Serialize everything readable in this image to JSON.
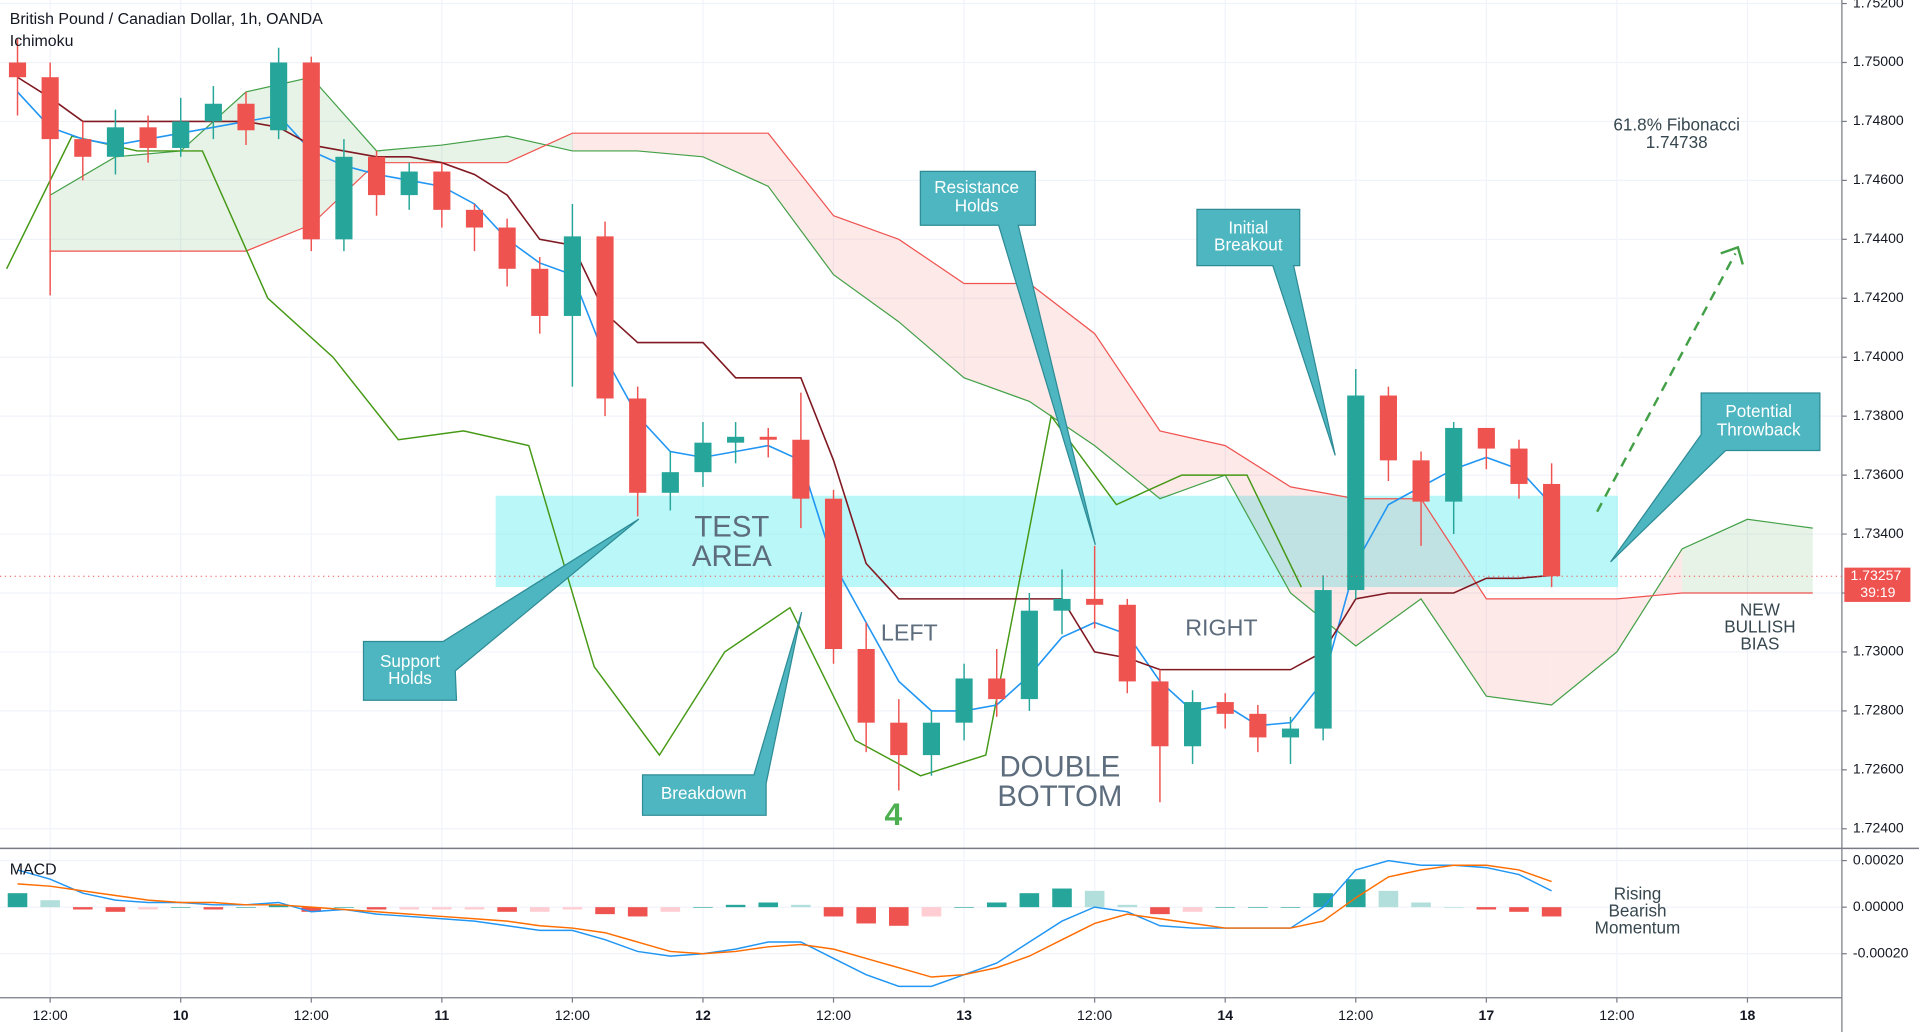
{
  "chart_data": [
    {
      "type": "candlestick",
      "title": "British Pound / Canadian Dollar, 1h, OANDA",
      "subtitle": "Ichimoku",
      "xlim": [
        -4.61,
        164.68
      ],
      "ylim": [
        1.72346,
        1.75212
      ],
      "yticks": [
        {
          "value": 1.724,
          "label": "1.72400"
        },
        {
          "value": 1.726,
          "label": "1.72600"
        },
        {
          "value": 1.728,
          "label": "1.72800"
        },
        {
          "value": 1.73,
          "label": "1.73000"
        },
        {
          "value": 1.732,
          "label": "1.73200"
        },
        {
          "value": 1.734,
          "label": "1.73400"
        },
        {
          "value": 1.736,
          "label": "1.73600"
        },
        {
          "value": 1.738,
          "label": "1.73800"
        },
        {
          "value": 1.74,
          "label": "1.74000"
        },
        {
          "value": 1.742,
          "label": "1.74200"
        },
        {
          "value": 1.744,
          "label": "1.74400"
        },
        {
          "value": 1.746,
          "label": "1.74600"
        },
        {
          "value": 1.748,
          "label": "1.74800"
        },
        {
          "value": 1.75,
          "label": "1.75000"
        },
        {
          "value": 1.752,
          "label": "1.75200"
        }
      ],
      "xticks": [
        {
          "value": 0,
          "label": "12:00"
        },
        {
          "value": 12,
          "label": "10"
        },
        {
          "value": 24,
          "label": "12:00"
        },
        {
          "value": 36,
          "label": "11"
        },
        {
          "value": 48,
          "label": "12:00"
        },
        {
          "value": 60,
          "label": "12"
        },
        {
          "value": 72,
          "label": "12:00"
        },
        {
          "value": 84,
          "label": "13"
        },
        {
          "value": 96,
          "label": "12:00"
        },
        {
          "value": 108,
          "label": "14"
        },
        {
          "value": 120,
          "label": "12:00"
        },
        {
          "value": 132,
          "label": "17"
        },
        {
          "value": 144,
          "label": "12:00"
        },
        {
          "value": 156,
          "label": "18"
        }
      ],
      "grid": true,
      "up_color": "#26a69a",
      "down_color": "#ef5350",
      "x": [
        -3,
        0,
        3,
        6,
        9,
        12,
        15,
        18,
        21,
        24,
        27,
        30,
        33,
        36,
        39,
        42,
        45,
        48,
        51,
        54,
        57,
        60,
        63,
        66,
        69,
        72,
        75,
        78,
        81,
        84,
        87,
        90,
        93,
        96,
        99,
        102,
        105,
        108,
        111,
        114,
        117,
        120,
        123,
        126,
        129,
        132,
        135,
        138
      ],
      "open": [
        1.75,
        1.7495,
        1.7474,
        1.7468,
        1.7478,
        1.7471,
        1.748,
        1.7486,
        1.7477,
        1.75,
        1.744,
        1.7468,
        1.7455,
        1.7463,
        1.745,
        1.7444,
        1.743,
        1.7414,
        1.7441,
        1.7386,
        1.7354,
        1.7361,
        1.7371,
        1.7373,
        1.7372,
        1.7352,
        1.7301,
        1.7276,
        1.7265,
        1.7276,
        1.7291,
        1.7284,
        1.7314,
        1.7318,
        1.7316,
        1.729,
        1.7268,
        1.7283,
        1.7279,
        1.7271,
        1.7274,
        1.7321,
        1.7387,
        1.7365,
        1.7351,
        1.7376,
        1.7369,
        1.7357
      ],
      "high": [
        1.7508,
        1.75,
        1.748,
        1.7484,
        1.7482,
        1.7488,
        1.7492,
        1.749,
        1.7505,
        1.7502,
        1.7474,
        1.747,
        1.7466,
        1.7466,
        1.7452,
        1.7447,
        1.7434,
        1.7452,
        1.7446,
        1.739,
        1.7368,
        1.7378,
        1.7378,
        1.7376,
        1.7388,
        1.7355,
        1.731,
        1.7284,
        1.728,
        1.7296,
        1.7301,
        1.732,
        1.7328,
        1.7336,
        1.7318,
        1.7294,
        1.7287,
        1.7286,
        1.7282,
        1.7278,
        1.7326,
        1.7396,
        1.739,
        1.7368,
        1.7378,
        1.7376,
        1.7372,
        1.7364
      ],
      "low": [
        1.7482,
        1.7421,
        1.746,
        1.7462,
        1.7466,
        1.7468,
        1.7474,
        1.7472,
        1.7474,
        1.7436,
        1.7436,
        1.7448,
        1.745,
        1.7444,
        1.7436,
        1.7424,
        1.7408,
        1.739,
        1.738,
        1.7346,
        1.7348,
        1.7356,
        1.7364,
        1.7366,
        1.7342,
        1.7296,
        1.7266,
        1.7253,
        1.7258,
        1.727,
        1.7278,
        1.728,
        1.7306,
        1.7308,
        1.7286,
        1.7249,
        1.7262,
        1.7274,
        1.7266,
        1.7262,
        1.727,
        1.7318,
        1.7358,
        1.7336,
        1.734,
        1.7362,
        1.7352,
        1.7322
      ],
      "close": [
        1.7495,
        1.7474,
        1.7468,
        1.7478,
        1.7471,
        1.748,
        1.7486,
        1.7477,
        1.75,
        1.744,
        1.7468,
        1.7455,
        1.7463,
        1.745,
        1.7444,
        1.743,
        1.7414,
        1.7441,
        1.7386,
        1.7354,
        1.7361,
        1.7371,
        1.7373,
        1.7372,
        1.7352,
        1.7301,
        1.7276,
        1.7265,
        1.7276,
        1.7291,
        1.7284,
        1.7314,
        1.7318,
        1.7316,
        1.729,
        1.7268,
        1.7283,
        1.7279,
        1.7271,
        1.7274,
        1.7321,
        1.7387,
        1.7365,
        1.7351,
        1.7376,
        1.7369,
        1.7357,
        1.73257
      ],
      "series": [
        {
          "color": "#2196f3",
          "values": [
            1.749,
            1.7478,
            1.7474,
            1.7472,
            1.7474,
            1.7476,
            1.7478,
            1.748,
            1.7482,
            1.747,
            1.7465,
            1.7462,
            1.746,
            1.7458,
            1.7452,
            1.744,
            1.7432,
            1.7428,
            1.74,
            1.738,
            1.7368,
            1.7366,
            1.7368,
            1.737,
            1.7365,
            1.733,
            1.731,
            1.729,
            1.728,
            1.728,
            1.7282,
            1.7292,
            1.7305,
            1.731,
            1.7306,
            1.729,
            1.728,
            1.7282,
            1.7275,
            1.7276,
            1.729,
            1.733,
            1.735,
            1.7356,
            1.7362,
            1.7366,
            1.7362,
            1.735
          ]
        },
        {
          "color": "#801922",
          "values": [
            1.7495,
            1.7488,
            1.748,
            1.748,
            1.748,
            1.748,
            1.748,
            1.748,
            1.7478,
            1.7472,
            1.747,
            1.7468,
            1.7468,
            1.7466,
            1.7462,
            1.7455,
            1.744,
            1.7438,
            1.7415,
            1.7405,
            1.7405,
            1.7405,
            1.7393,
            1.7393,
            1.7393,
            1.7365,
            1.733,
            1.7318,
            1.7318,
            1.7318,
            1.7318,
            1.7318,
            1.7318,
            1.73,
            1.7298,
            1.7294,
            1.7294,
            1.7294,
            1.7294,
            1.7294,
            1.73,
            1.7318,
            1.732,
            1.732,
            1.732,
            1.7325,
            1.7325,
            1.7326
          ]
        }
      ],
      "lagging_span": {
        "color": "#459915",
        "x": [
          -4,
          2,
          8,
          14,
          20,
          26,
          32,
          38,
          44,
          50,
          56,
          62,
          68,
          74,
          80,
          86,
          92,
          98,
          104,
          110,
          115
        ],
        "values": [
          1.743,
          1.7475,
          1.747,
          1.747,
          1.742,
          1.74,
          1.7372,
          1.7375,
          1.737,
          1.7295,
          1.7265,
          1.73,
          1.7315,
          1.727,
          1.7258,
          1.7265,
          1.738,
          1.735,
          1.736,
          1.736,
          1.7322
        ]
      },
      "cloud": {
        "span_a_color": "#43a047",
        "span_b_color": "#ef5350",
        "x": [
          0,
          6,
          12,
          18,
          24,
          30,
          36,
          42,
          48,
          54,
          60,
          66,
          72,
          78,
          84,
          90,
          96,
          102,
          108,
          114,
          120,
          126,
          132,
          138,
          144,
          150,
          156,
          162
        ],
        "span_a": [
          1.7455,
          1.7468,
          1.747,
          1.749,
          1.7495,
          1.747,
          1.7472,
          1.7475,
          1.747,
          1.747,
          1.7468,
          1.7458,
          1.7428,
          1.7412,
          1.7393,
          1.7385,
          1.737,
          1.7352,
          1.736,
          1.732,
          1.7302,
          1.7318,
          1.7285,
          1.7282,
          1.73,
          1.7335,
          1.7345,
          1.7342
        ],
        "span_b": [
          1.7436,
          1.7436,
          1.7436,
          1.7436,
          1.7445,
          1.7466,
          1.7466,
          1.7466,
          1.7476,
          1.7476,
          1.7476,
          1.7476,
          1.7448,
          1.744,
          1.7425,
          1.7425,
          1.7408,
          1.7375,
          1.737,
          1.7356,
          1.7352,
          1.7352,
          1.7318,
          1.7318,
          1.7318,
          1.732,
          1.732,
          1.732
        ]
      },
      "fibonacci_level": 1.74738,
      "fibonacci_color": "#1b5e20",
      "zone": [
        1.7322,
        1.7353
      ],
      "zone_color": "#7ff0f3",
      "last_price": {
        "value": 1.73257,
        "label": "1.73257"
      },
      "countdown": "39:19"
    },
    {
      "type": "macd",
      "subtitle": "MACD",
      "xlim": [
        -4.61,
        164.68
      ],
      "ylim": [
        -0.000389,
        0.000242
      ],
      "yticks": [
        {
          "value": 0.0002,
          "label": "0.00020"
        },
        {
          "value": 0,
          "label": "0.00000"
        },
        {
          "value": -0.0002,
          "label": "-0.00020"
        }
      ],
      "histogram_colors": [
        "#26a69a",
        "#b2dfdb",
        "#ef5350",
        "#ffcdd2"
      ],
      "x": [
        -3,
        0,
        3,
        6,
        9,
        12,
        15,
        18,
        21,
        24,
        27,
        30,
        33,
        36,
        39,
        42,
        45,
        48,
        51,
        54,
        57,
        60,
        63,
        66,
        69,
        72,
        75,
        78,
        81,
        84,
        87,
        90,
        93,
        96,
        99,
        102,
        105,
        108,
        111,
        114,
        117,
        120,
        123,
        126,
        129,
        132,
        135,
        138
      ],
      "histogram": [
        6e-05,
        3e-05,
        -1e-05,
        -2e-05,
        -1e-05,
        0,
        -1e-05,
        0,
        1e-05,
        -2e-05,
        0,
        -1e-05,
        -1e-05,
        -1e-05,
        -1e-05,
        -2e-05,
        -2e-05,
        -1e-05,
        -3e-05,
        -4e-05,
        -2e-05,
        0,
        1e-05,
        2e-05,
        1e-05,
        -4e-05,
        -7e-05,
        -8e-05,
        -4e-05,
        0,
        2e-05,
        6e-05,
        8e-05,
        7e-05,
        1e-05,
        -3e-05,
        -2e-05,
        0,
        0,
        0,
        6e-05,
        0.00012,
        7e-05,
        2e-05,
        0,
        -1e-05,
        -2e-05,
        -4e-05
      ],
      "series": [
        {
          "color": "#2196f3",
          "values": [
            0.00016,
            0.00012,
            6e-05,
            3e-05,
            2e-05,
            2e-05,
            1e-05,
            1e-05,
            2e-05,
            -2e-05,
            -1e-05,
            -3e-05,
            -4e-05,
            -5e-05,
            -6e-05,
            -8e-05,
            -0.0001,
            -0.0001,
            -0.00014,
            -0.00019,
            -0.00021,
            -0.0002,
            -0.00018,
            -0.00015,
            -0.00015,
            -0.00022,
            -0.00029,
            -0.00034,
            -0.00034,
            -0.00029,
            -0.00024,
            -0.00015,
            -6e-05,
            0,
            -2e-05,
            -8e-05,
            -9e-05,
            -9e-05,
            -9e-05,
            -9e-05,
            0,
            0.00016,
            0.0002,
            0.00018,
            0.00018,
            0.00017,
            0.00014,
            7e-05
          ]
        },
        {
          "color": "#ff6d00",
          "values": [
            0.0001,
            9e-05,
            7e-05,
            5e-05,
            3e-05,
            2e-05,
            2e-05,
            1e-05,
            1e-05,
            0,
            -1e-05,
            -2e-05,
            -3e-05,
            -4e-05,
            -5e-05,
            -6e-05,
            -8e-05,
            -9e-05,
            -0.00011,
            -0.00015,
            -0.00019,
            -0.0002,
            -0.00019,
            -0.00017,
            -0.00016,
            -0.00018,
            -0.00022,
            -0.00026,
            -0.0003,
            -0.00029,
            -0.00026,
            -0.00021,
            -0.00014,
            -7e-05,
            -3e-05,
            -5e-05,
            -7e-05,
            -9e-05,
            -9e-05,
            -9e-05,
            -6e-05,
            4e-05,
            0.00013,
            0.00016,
            0.00018,
            0.00018,
            0.00016,
            0.00011
          ]
        }
      ]
    }
  ],
  "annotations": {
    "fibonacci": [
      "61.8% Fibonacci"
    ],
    "resistance_holds": [
      "Resistance",
      "Holds"
    ],
    "initial_breakout": [
      "Initial",
      "Breakout"
    ],
    "support_holds": [
      "Support",
      "Holds"
    ],
    "breakdown": [
      "Breakdown"
    ],
    "potential_throwback": [
      "Potential",
      "Throwback"
    ],
    "test_area": [
      "TEST",
      "AREA"
    ],
    "left": [
      "LEFT"
    ],
    "right": [
      "RIGHT"
    ],
    "double_bottom": [
      "DOUBLE",
      "BOTTOM"
    ],
    "four": [
      "4"
    ],
    "new_bullish_bias": [
      "NEW",
      "BULLISH",
      "BIAS"
    ],
    "rising_bearish_momentum": [
      "Rising",
      "Bearish",
      "Momentum"
    ]
  }
}
